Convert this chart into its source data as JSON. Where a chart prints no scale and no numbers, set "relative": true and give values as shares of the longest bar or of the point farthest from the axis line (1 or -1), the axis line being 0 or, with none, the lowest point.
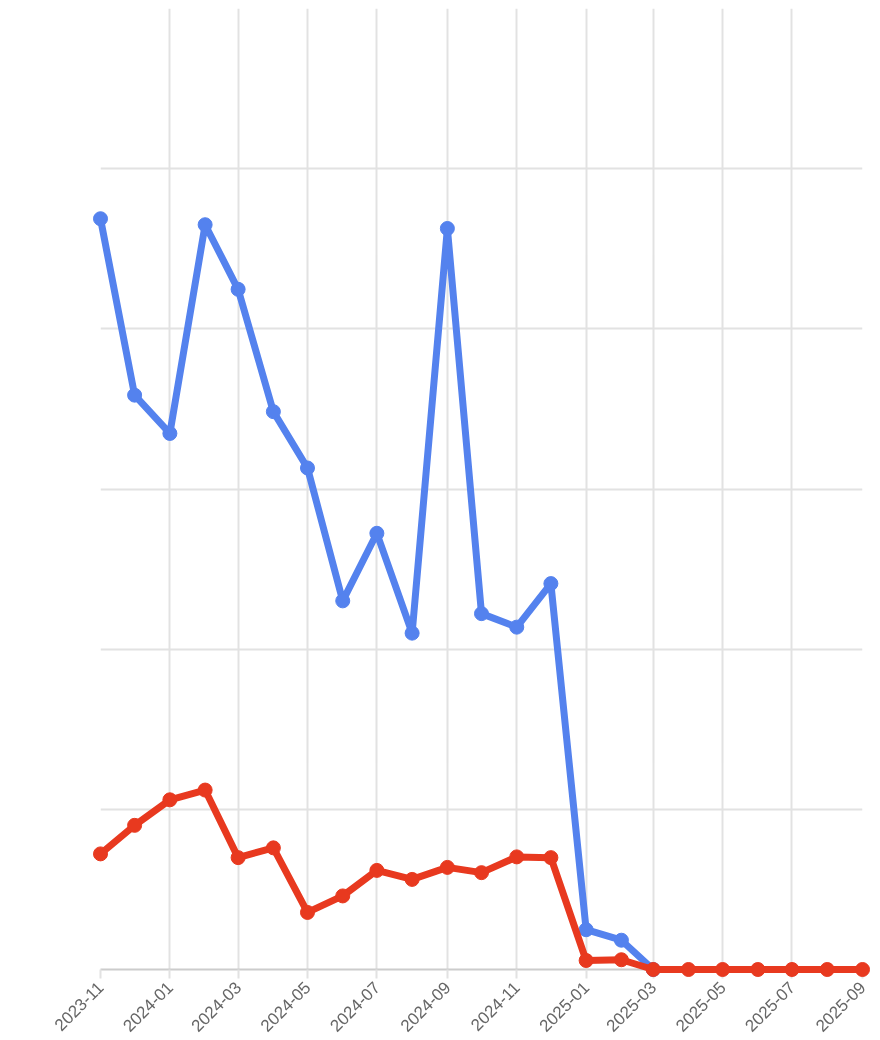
{
  "chart_data": {
    "type": "line",
    "relative": true,
    "x": [
      "2023-11",
      "2023-12",
      "2024-01",
      "2024-02",
      "2024-03",
      "2024-04",
      "2024-05",
      "2024-06",
      "2024-07",
      "2024-08",
      "2024-09",
      "2024-10",
      "2024-11",
      "2024-12",
      "2025-01",
      "2025-02",
      "2025-03",
      "2025-04",
      "2025-05",
      "2025-06",
      "2025-07",
      "2025-08",
      "2025-09"
    ],
    "xlim": [
      "2023-11",
      "2025-09"
    ],
    "xticks": [
      "2023-11",
      "2024-01",
      "2024-03",
      "2024-05",
      "2024-07",
      "2024-09",
      "2024-11",
      "2025-01",
      "2025-03",
      "2025-05",
      "2025-07",
      "2025-09"
    ],
    "series": [
      {
        "color": "#5482ee",
        "values": [
          1.0,
          0.765,
          0.714,
          0.992,
          0.906,
          0.743,
          0.668,
          0.491,
          0.581,
          0.448,
          0.987,
          0.474,
          0.456,
          0.514,
          0.053,
          0.039,
          0.0,
          null,
          null,
          null,
          null,
          null,
          null
        ]
      },
      {
        "color": "#e8391f",
        "values": [
          0.154,
          0.192,
          0.226,
          0.239,
          0.149,
          0.162,
          0.076,
          0.098,
          0.132,
          0.12,
          0.136,
          0.129,
          0.15,
          0.149,
          0.012,
          0.013,
          0.0,
          0.0,
          0.0,
          0.0,
          0.0,
          0.0,
          0.0
        ]
      }
    ],
    "marker": "circle",
    "line_style": "solid",
    "grid": true,
    "tick_labels": "x"
  }
}
